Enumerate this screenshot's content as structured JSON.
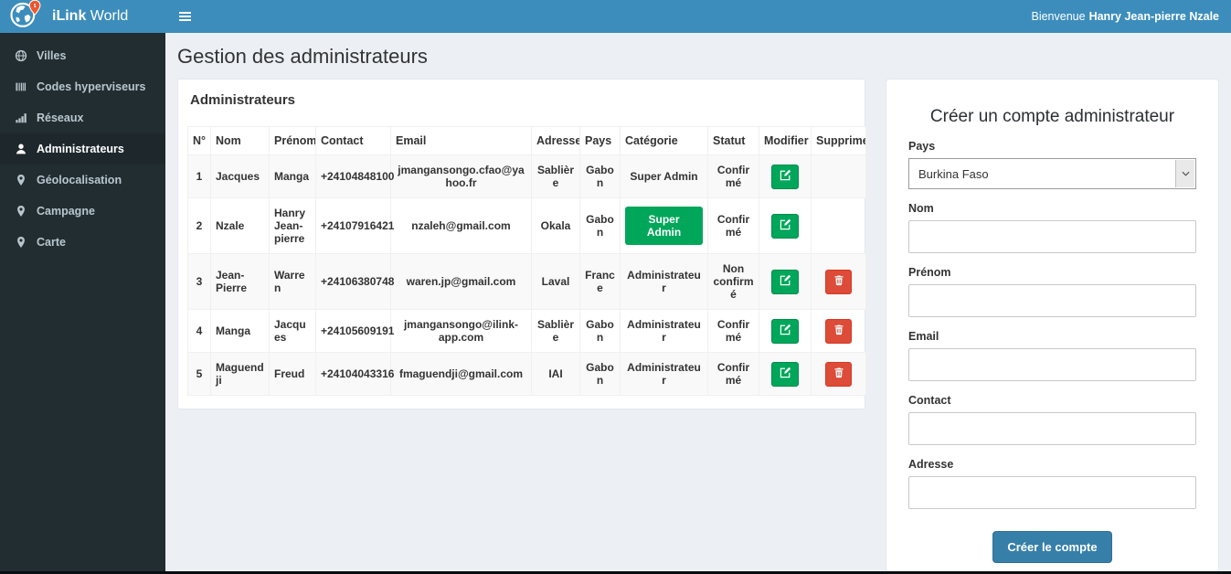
{
  "topbar": {
    "brand_bold": "iLink",
    "brand_regular": " World",
    "welcome_prefix": "Bienvenue",
    "welcome_name": "Hanry Jean-pierre Nzale"
  },
  "sidebar": {
    "items": [
      {
        "label": "Villes",
        "icon": "globe-icon",
        "active": false
      },
      {
        "label": "Codes hyperviseurs",
        "icon": "barcode-icon",
        "active": false
      },
      {
        "label": "Réseaux",
        "icon": "signal-bars-icon",
        "active": false
      },
      {
        "label": "Administrateurs",
        "icon": "user-icon",
        "active": true
      },
      {
        "label": "Géolocalisation",
        "icon": "map-marker-icon",
        "active": false
      },
      {
        "label": "Campagne",
        "icon": "map-marker-icon",
        "active": false
      },
      {
        "label": "Carte",
        "icon": "map-marker-icon",
        "active": false
      }
    ]
  },
  "page": {
    "title": "Gestion des administrateurs"
  },
  "panel": {
    "title": "Administrateurs"
  },
  "table": {
    "columns": [
      "N°",
      "Nom",
      "Prénom",
      "Contact",
      "Email",
      "Adresse",
      "Pays",
      "Catégorie",
      "Statut",
      "Modifier",
      "Supprimer"
    ],
    "rows": [
      {
        "n": "1",
        "nom": "Jacques",
        "prenom": "Manga",
        "contact": "+24104848100",
        "email": "jmangansongo.cfao@yahoo.fr",
        "adresse": "Sablière",
        "pays": "Gabon",
        "categorie": "Super Admin",
        "categorie_style": "text",
        "statut": "Confirmé",
        "can_delete": false
      },
      {
        "n": "2",
        "nom": "Nzale",
        "prenom": "Hanry Jean-pierre",
        "contact": "+24107916421",
        "email": "nzaleh@gmail.com",
        "adresse": "Okala",
        "pays": "Gabon",
        "categorie": "Super Admin",
        "categorie_style": "badge",
        "statut": "Confirmé",
        "can_delete": false
      },
      {
        "n": "3",
        "nom": "Jean-Pierre",
        "prenom": "Warren",
        "contact": "+24106380748",
        "email": "waren.jp@gmail.com",
        "adresse": "Laval",
        "pays": "France",
        "categorie": "Administrateur",
        "categorie_style": "text",
        "statut": "Non confirmé",
        "can_delete": true
      },
      {
        "n": "4",
        "nom": "Manga",
        "prenom": "Jacques",
        "contact": "+24105609191",
        "email": "jmangansongo@ilink-app.com",
        "adresse": "Sablière",
        "pays": "Gabon",
        "categorie": "Administrateur",
        "categorie_style": "text",
        "statut": "Confirmé",
        "can_delete": true
      },
      {
        "n": "5",
        "nom": "Maguendji",
        "prenom": "Freud",
        "contact": "+24104043316",
        "email": "fmaguendji@gmail.com",
        "adresse": "IAI",
        "pays": "Gabon",
        "categorie": "Administrateur",
        "categorie_style": "text",
        "statut": "Confirmé",
        "can_delete": true
      }
    ]
  },
  "form": {
    "title": "Créer un compte administrateur",
    "fields": [
      {
        "name": "pays",
        "label": "Pays",
        "type": "select",
        "value": "Burkina Faso"
      },
      {
        "name": "nom",
        "label": "Nom",
        "type": "text",
        "value": "",
        "placeholder": ""
      },
      {
        "name": "prenom",
        "label": "Prénom",
        "type": "text",
        "value": "",
        "placeholder": ""
      },
      {
        "name": "email",
        "label": "Email",
        "type": "text",
        "value": "",
        "placeholder": ""
      },
      {
        "name": "contact",
        "label": "Contact",
        "type": "text",
        "value": "",
        "placeholder": ""
      },
      {
        "name": "adresse",
        "label": "Adresse",
        "type": "text",
        "value": "",
        "placeholder": ""
      }
    ],
    "submit_label": "Créer le compte"
  },
  "colors": {
    "topbar": "#3c8dbc",
    "sidebar_bg": "#222d32",
    "sidebar_text": "#b8c7ce",
    "sidebar_active_bg": "#1e282c",
    "content_bg": "#ecf0f5",
    "success_green": "#00a65a",
    "danger_red": "#dd4b39",
    "primary_button": "#367fa9",
    "logo_pin_orange": "#f0592b"
  }
}
